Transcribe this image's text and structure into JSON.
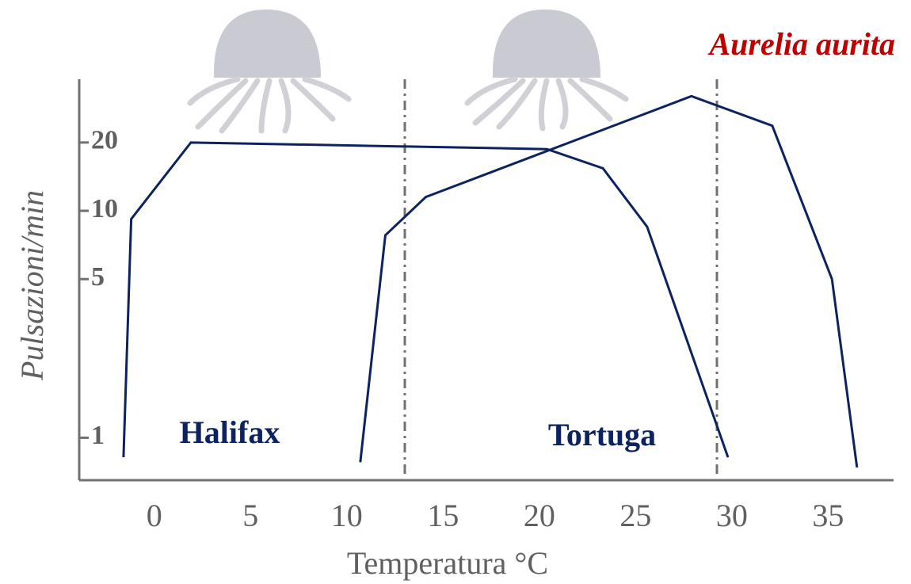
{
  "chart_data": {
    "type": "line",
    "title": "Aurelia aurita",
    "x_label": "Temperatura °C",
    "y_label": "Pulsazioni/min",
    "xlim": [
      -3.9,
      38.4
    ],
    "xticks": [
      0,
      5,
      10,
      15,
      20,
      25,
      30,
      35
    ],
    "ylim": [
      0.65,
      38
    ],
    "yticks": [
      1,
      5,
      10,
      20
    ],
    "ylog": true,
    "series": [
      {
        "name": "Halifax",
        "color": "#0d2360",
        "x": [
          -1.6,
          -1.2,
          1.9,
          20.4,
          23.3,
          25.6,
          29.8
        ],
        "values": [
          0.82,
          9.2,
          20,
          18.7,
          15.4,
          8.5,
          0.82
        ]
      },
      {
        "name": "Tortuga",
        "color": "#0d2360",
        "x": [
          10.7,
          12.0,
          14.1,
          27.9,
          32.1,
          35.2,
          36.5
        ],
        "values": [
          0.78,
          7.8,
          11.5,
          32,
          23.7,
          5.0,
          0.74
        ]
      }
    ]
  }
}
